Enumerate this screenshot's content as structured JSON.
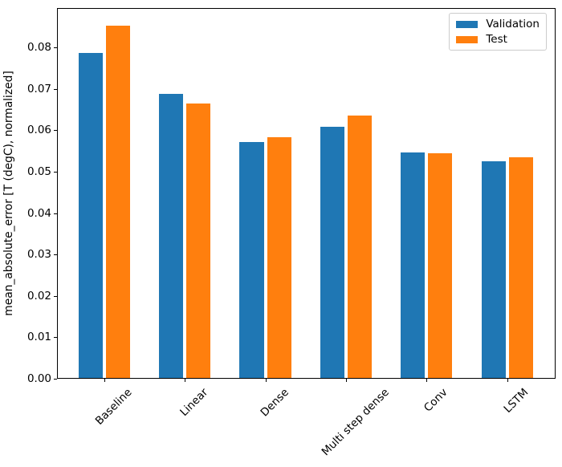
{
  "figure": {
    "background": "#ffffff"
  },
  "chart_data": {
    "type": "bar",
    "title": "",
    "xlabel": "",
    "ylabel": "mean_absolute_error [T (degC), normalized]",
    "categories": [
      "Baseline",
      "Linear",
      "Dense",
      "Multi step dense",
      "Conv",
      "LSTM"
    ],
    "series": [
      {
        "name": "Validation",
        "color": "#1f77b4",
        "values": [
          0.0787,
          0.0688,
          0.0572,
          0.0609,
          0.0547,
          0.0525
        ]
      },
      {
        "name": "Test",
        "color": "#ff7f0e",
        "values": [
          0.0853,
          0.0664,
          0.0584,
          0.0636,
          0.0544,
          0.0535
        ]
      }
    ],
    "yticks": [
      "0.00",
      "0.01",
      "0.02",
      "0.03",
      "0.04",
      "0.05",
      "0.06",
      "0.07",
      "0.08"
    ],
    "ylim": [
      0,
      0.0895
    ],
    "xlim": [
      -0.585,
      5.6
    ],
    "bar_width": 0.3,
    "bar_offset": 0.17,
    "xtick_rotation": 45,
    "grid": false,
    "legend_position": "upper right"
  }
}
